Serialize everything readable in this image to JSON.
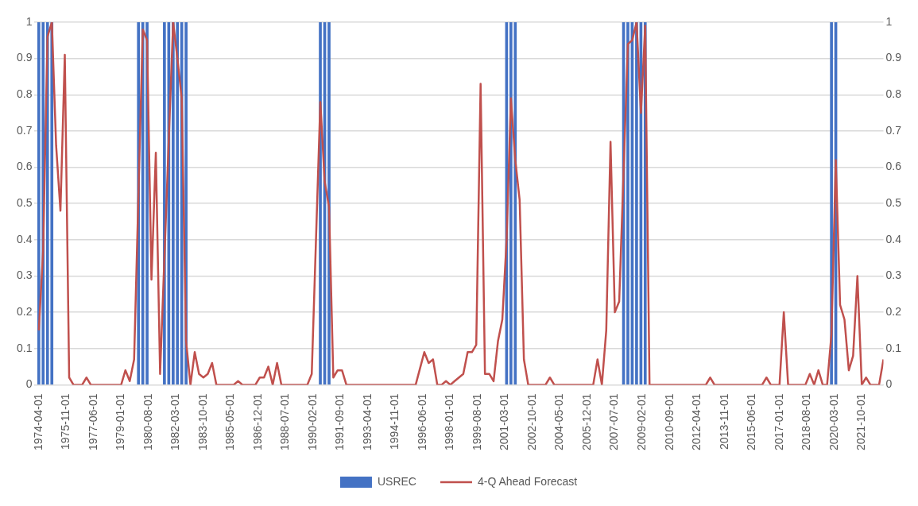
{
  "chart_data": {
    "type": "line",
    "xlim": [
      "1974-01-01",
      "2023-01-01"
    ],
    "xticks": [
      "1974-04-01",
      "1975-11-01",
      "1977-06-01",
      "1979-01-01",
      "1980-08-01",
      "1982-03-01",
      "1983-10-01",
      "1985-05-01",
      "1986-12-01",
      "1988-07-01",
      "1990-02-01",
      "1991-09-01",
      "1993-04-01",
      "1994-11-01",
      "1996-06-01",
      "1998-01-01",
      "1999-08-01",
      "2001-03-01",
      "2002-10-01",
      "2004-05-01",
      "2005-12-01",
      "2007-07-01",
      "2009-02-01",
      "2010-09-01",
      "2012-04-01",
      "2013-11-01",
      "2015-06-01",
      "2017-01-01",
      "2018-08-01",
      "2020-03-01",
      "2021-10-01"
    ],
    "ylim": [
      0,
      1
    ],
    "yticks": [
      0,
      0.1,
      0.2,
      0.3,
      0.4,
      0.5,
      0.6,
      0.7,
      0.8,
      0.9,
      1
    ],
    "y2lim": [
      0,
      1
    ],
    "y2ticks": [
      0,
      0.1,
      0.2,
      0.3,
      0.4,
      0.5,
      0.6,
      0.7,
      0.8,
      0.9,
      1
    ],
    "grid": "y",
    "legend": "bottom",
    "marker": "none",
    "series": [
      {
        "name": "USREC",
        "type": "bar",
        "color": "#4472c4",
        "x": [
          "1974-04-01",
          "1974-07-01",
          "1974-10-01",
          "1975-01-01",
          "1980-01-01",
          "1980-04-01",
          "1980-07-01",
          "1981-07-01",
          "1981-10-01",
          "1982-01-01",
          "1982-04-01",
          "1982-07-01",
          "1982-10-01",
          "1990-07-01",
          "1990-10-01",
          "1991-01-01",
          "2001-04-01",
          "2001-07-01",
          "2001-10-01",
          "2008-01-01",
          "2008-04-01",
          "2008-07-01",
          "2008-10-01",
          "2009-01-01",
          "2009-04-01",
          "2020-01-01",
          "2020-04-01"
        ],
        "values": [
          1,
          1,
          1,
          1,
          1,
          1,
          1,
          1,
          1,
          1,
          1,
          1,
          1,
          1,
          1,
          1,
          1,
          1,
          1,
          1,
          1,
          1,
          1,
          1,
          1,
          1,
          1
        ]
      },
      {
        "name": "4-Q Ahead Forecast",
        "axis": "y2",
        "color": "#c0504d",
        "x": [
          "1974-04-01",
          "1974-07-01",
          "1974-10-01",
          "1975-01-01",
          "1975-04-01",
          "1975-07-01",
          "1975-10-01",
          "1976-01-01",
          "1976-04-01",
          "1976-10-01",
          "1977-01-01",
          "1977-04-01",
          "1979-01-01",
          "1979-04-01",
          "1979-07-01",
          "1979-10-01",
          "1980-04-01",
          "1980-07-01",
          "1980-10-01",
          "1981-01-01",
          "1981-04-01",
          "1982-01-01",
          "1982-04-01",
          "1982-07-01",
          "1982-10-01",
          "1983-01-01",
          "1983-04-01",
          "1983-07-01",
          "1983-10-01",
          "1984-01-01",
          "1984-04-01",
          "1984-07-01",
          "1985-07-01",
          "1985-10-01",
          "1986-01-01",
          "1986-10-01",
          "1987-01-01",
          "1987-04-01",
          "1987-07-01",
          "1987-10-01",
          "1988-01-01",
          "1988-04-01",
          "1989-10-01",
          "1990-01-01",
          "1990-07-01",
          "1990-10-01",
          "1991-01-01",
          "1991-04-01",
          "1991-07-01",
          "1991-10-01",
          "1992-01-01",
          "1996-01-01",
          "1996-07-01",
          "1996-10-01",
          "1997-01-01",
          "1997-04-01",
          "1997-07-01",
          "1997-10-01",
          "1998-01-01",
          "1998-04-01",
          "1998-10-01",
          "1999-01-01",
          "1999-04-01",
          "1999-07-01",
          "1999-10-01",
          "2000-01-01",
          "2000-04-01",
          "2000-07-01",
          "2000-10-01",
          "2001-01-01",
          "2001-04-01",
          "2001-07-01",
          "2001-10-01",
          "2002-01-01",
          "2002-04-01",
          "2002-07-01",
          "2003-07-01",
          "2003-10-01",
          "2004-01-01",
          "2006-04-01",
          "2006-07-01",
          "2006-10-01",
          "2007-01-01",
          "2007-04-01",
          "2007-07-01",
          "2007-10-01",
          "2008-04-01",
          "2008-07-01",
          "2008-10-01",
          "2009-01-01",
          "2009-04-01",
          "2009-07-01",
          "2012-10-01",
          "2013-01-01",
          "2013-04-01",
          "2016-01-01",
          "2016-04-01",
          "2016-07-01",
          "2017-01-01",
          "2017-04-01",
          "2017-07-01",
          "2018-07-01",
          "2018-10-01",
          "2019-01-01",
          "2019-04-01",
          "2019-07-01",
          "2019-10-01",
          "2020-01-01",
          "2020-04-01",
          "2020-07-01",
          "2020-10-01",
          "2021-01-01",
          "2021-04-01",
          "2021-07-01",
          "2021-10-01",
          "2022-01-01",
          "2022-04-01",
          "2022-10-01",
          "2023-01-01"
        ],
        "values": [
          0.15,
          0.37,
          0.96,
          1,
          0.66,
          0.48,
          0.91,
          0.02,
          0,
          0,
          0.02,
          0,
          0,
          0.04,
          0.01,
          0.07,
          0.98,
          0.95,
          0.29,
          0.64,
          0.03,
          1,
          0.9,
          0.79,
          0.12,
          0,
          0.09,
          0.03,
          0.02,
          0.03,
          0.06,
          0,
          0,
          0.01,
          0,
          0,
          0.02,
          0.02,
          0.05,
          0,
          0.06,
          0,
          0,
          0.03,
          0.78,
          0.56,
          0.49,
          0.02,
          0.04,
          0.04,
          0,
          0,
          0.09,
          0.06,
          0.07,
          0,
          0,
          0.01,
          0,
          0.01,
          0.03,
          0.09,
          0.09,
          0.11,
          0.83,
          0.03,
          0.03,
          0.01,
          0.12,
          0.18,
          0.4,
          0.79,
          0.62,
          0.51,
          0.07,
          0,
          0,
          0.02,
          0,
          0,
          0.07,
          0,
          0.15,
          0.67,
          0.2,
          0.23,
          0.94,
          0.95,
          1,
          0.75,
          0.99,
          0,
          0,
          0.02,
          0,
          0,
          0.02,
          0,
          0,
          0.2,
          0,
          0,
          0.03,
          0,
          0.04,
          0,
          0,
          0.14,
          0.62,
          0.22,
          0.18,
          0.04,
          0.08,
          0.3,
          0,
          0.02,
          0,
          0,
          0.07
        ]
      }
    ]
  }
}
